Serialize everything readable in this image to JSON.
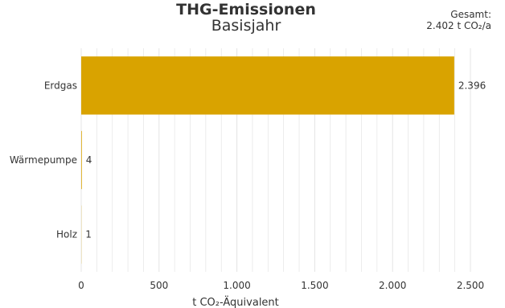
{
  "header": {
    "title": "THG-Emissionen",
    "subtitle": "Basisjahr",
    "total_label": "Gesamt:",
    "total_value": "2.402 t CO₂/a"
  },
  "chart_data": {
    "type": "bar",
    "orientation": "horizontal",
    "categories": [
      "Erdgas",
      "Wärmepumpe",
      "Holz"
    ],
    "values": [
      2396,
      4,
      1
    ],
    "value_labels": [
      "2.396",
      "4",
      "1"
    ],
    "xlabel": "t CO₂-Äquivalent",
    "ylabel": "",
    "xlim": [
      0,
      2500
    ],
    "x_ticks": [
      0,
      500,
      1000,
      1500,
      2000,
      2500
    ],
    "x_tick_labels": [
      "0",
      "500",
      "1.000",
      "1.500",
      "2.000",
      "2.500"
    ],
    "grid": true,
    "bar_color": "#D9A300",
    "grid_color": "#E4E4E4"
  }
}
